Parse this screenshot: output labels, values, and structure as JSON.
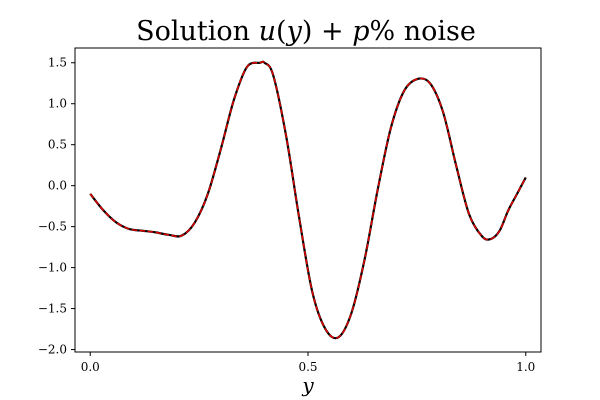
{
  "chart_data": {
    "type": "line",
    "title_parts": [
      "Solution ",
      "u",
      "(",
      "y",
      ") + ",
      "p",
      "% noise"
    ],
    "title": "Solution u(y) + p% noise",
    "xlabel": "y",
    "ylabel": "",
    "xlim": [
      -0.035,
      1.035
    ],
    "ylim": [
      -2.03,
      1.68
    ],
    "xticks": [
      0.0,
      0.5,
      1.0
    ],
    "xtick_labels": [
      "0.0",
      "0.5",
      "1.0"
    ],
    "yticks": [
      -2.0,
      -1.5,
      -1.0,
      -0.5,
      0.0,
      0.5,
      1.0,
      1.5
    ],
    "ytick_labels": [
      "−2.0",
      "−1.5",
      "−1.0",
      "−0.5",
      "0.0",
      "0.5",
      "1.0",
      "1.5"
    ],
    "grid": false,
    "series": [
      {
        "style": "solid",
        "color": "#000000",
        "x": [
          0.0,
          0.03,
          0.06,
          0.09,
          0.12,
          0.15,
          0.18,
          0.21,
          0.24,
          0.27,
          0.3,
          0.33,
          0.36,
          0.39,
          0.4,
          0.42,
          0.45,
          0.48,
          0.51,
          0.54,
          0.57,
          0.6,
          0.63,
          0.66,
          0.69,
          0.72,
          0.75,
          0.78,
          0.81,
          0.84,
          0.87,
          0.9,
          0.92,
          0.94,
          0.96,
          0.98,
          1.0
        ],
        "y": [
          -0.1,
          -0.3,
          -0.45,
          -0.53,
          -0.55,
          -0.57,
          -0.6,
          -0.61,
          -0.45,
          -0.1,
          0.45,
          1.05,
          1.45,
          1.5,
          1.5,
          1.35,
          0.6,
          -0.4,
          -1.3,
          -1.75,
          -1.85,
          -1.55,
          -0.9,
          -0.05,
          0.7,
          1.15,
          1.3,
          1.25,
          0.9,
          0.25,
          -0.35,
          -0.62,
          -0.65,
          -0.55,
          -0.3,
          -0.1,
          0.1
        ]
      },
      {
        "style": "dashed",
        "color": "#e00000",
        "x": [
          0.0,
          0.03,
          0.06,
          0.09,
          0.12,
          0.15,
          0.18,
          0.21,
          0.24,
          0.27,
          0.3,
          0.33,
          0.36,
          0.39,
          0.4,
          0.42,
          0.45,
          0.48,
          0.51,
          0.54,
          0.57,
          0.6,
          0.63,
          0.66,
          0.69,
          0.72,
          0.75,
          0.78,
          0.81,
          0.84,
          0.87,
          0.9,
          0.92,
          0.94,
          0.96,
          0.98,
          1.0
        ],
        "y": [
          -0.1,
          -0.3,
          -0.45,
          -0.53,
          -0.55,
          -0.57,
          -0.6,
          -0.61,
          -0.45,
          -0.1,
          0.45,
          1.05,
          1.45,
          1.5,
          1.5,
          1.35,
          0.6,
          -0.4,
          -1.3,
          -1.75,
          -1.85,
          -1.55,
          -0.9,
          -0.05,
          0.7,
          1.15,
          1.3,
          1.25,
          0.9,
          0.25,
          -0.35,
          -0.62,
          -0.65,
          -0.55,
          -0.3,
          -0.1,
          0.1
        ]
      }
    ]
  }
}
